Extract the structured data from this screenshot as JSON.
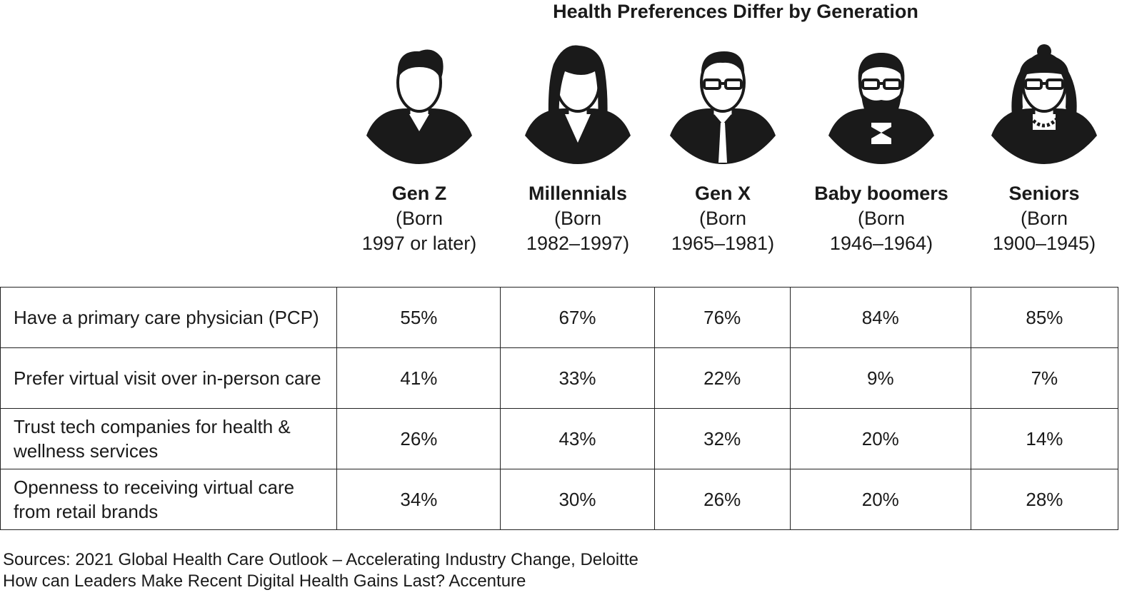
{
  "chart_data": {
    "type": "table",
    "title": "Health Preferences Differ by Generation",
    "columns": [
      {
        "name": "Gen Z",
        "born": "(Born",
        "range": "1997 or later)",
        "icon": "young-man-avatar-icon"
      },
      {
        "name": "Millennials",
        "born": "(Born",
        "range": "1982–1997)",
        "icon": "woman-long-hair-avatar-icon"
      },
      {
        "name": "Gen X",
        "born": "(Born",
        "range": "1965–1981)",
        "icon": "man-glasses-tie-avatar-icon"
      },
      {
        "name": "Baby boomers",
        "born": "(Born",
        "range": "1946–1964)",
        "icon": "bearded-man-bowtie-avatar-icon"
      },
      {
        "name": "Seniors",
        "born": "(Born",
        "range": "1900–1945)",
        "icon": "older-woman-glasses-pearls-avatar-icon"
      }
    ],
    "rows": [
      {
        "label": "Have a primary care physician (PCP)",
        "values": [
          "55%",
          "67%",
          "76%",
          "84%",
          "85%"
        ]
      },
      {
        "label": "Prefer virtual visit over in-person care",
        "values": [
          "41%",
          "33%",
          "22%",
          "9%",
          "7%"
        ]
      },
      {
        "label": "Trust tech companies for health & wellness services",
        "values": [
          "26%",
          "43%",
          "32%",
          "20%",
          "14%"
        ]
      },
      {
        "label": "Openness to receiving virtual care from retail brands",
        "values": [
          "34%",
          "30%",
          "26%",
          "20%",
          "28%"
        ]
      }
    ]
  },
  "sources": [
    "Sources: 2021 Global Health Care Outlook – Accelerating Industry Change, Deloitte",
    "How can Leaders Make Recent Digital Health Gains Last? Accenture"
  ]
}
